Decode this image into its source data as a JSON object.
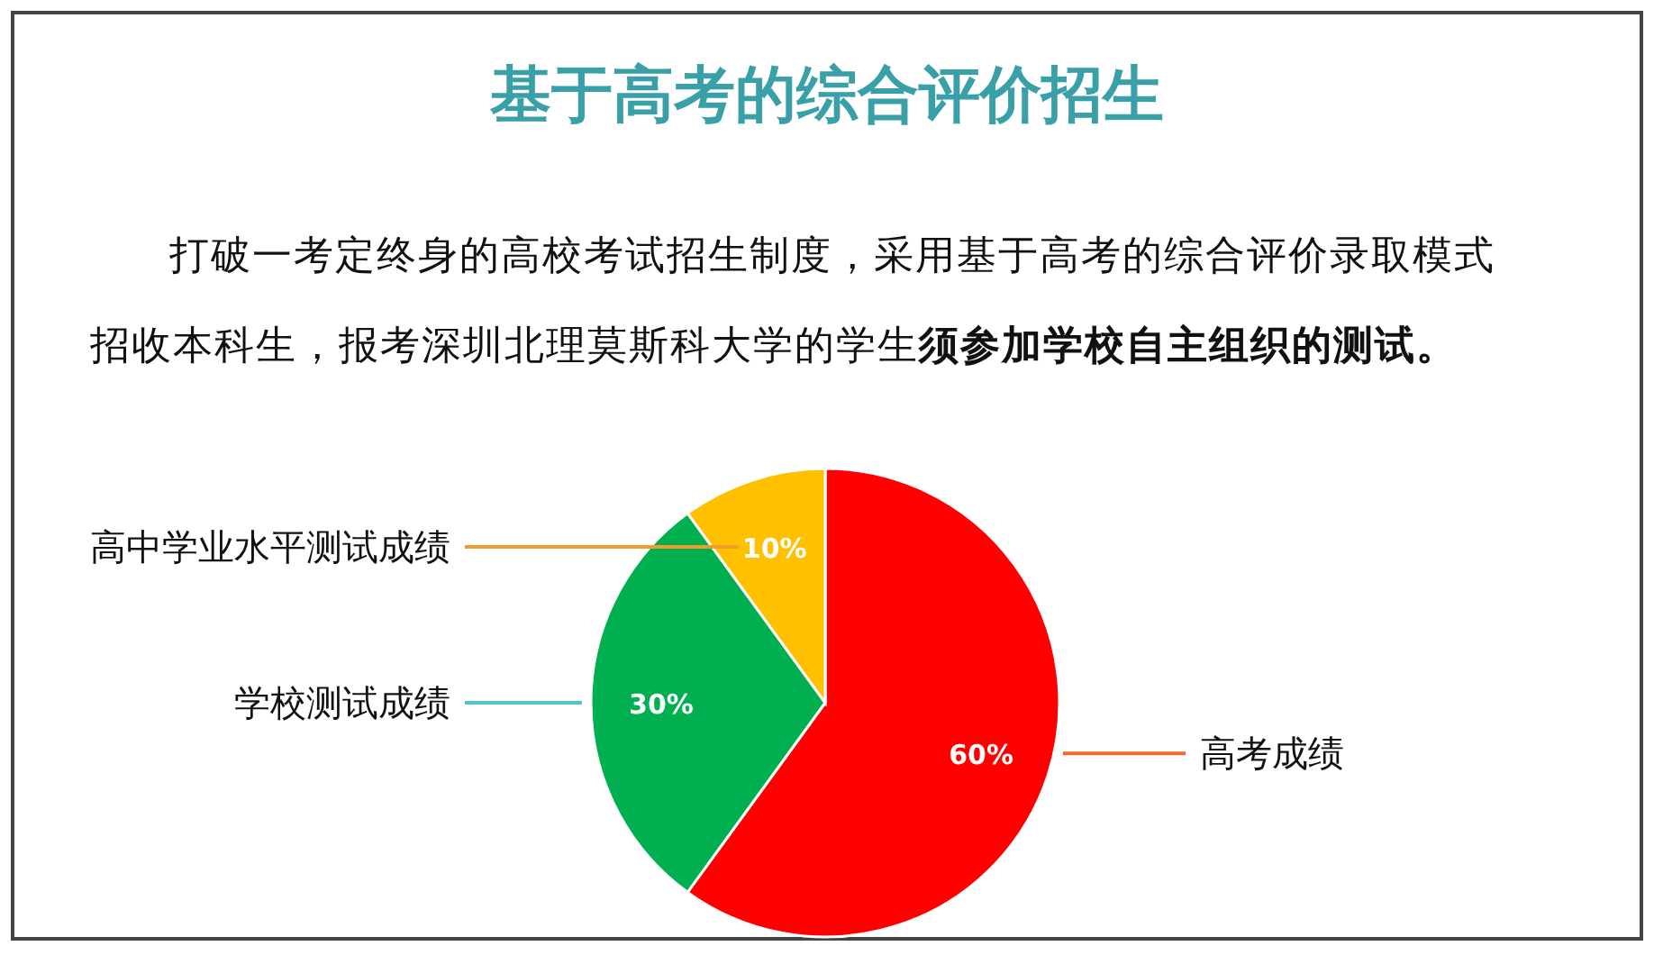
{
  "chart_data": {
    "type": "pie",
    "title": "基于高考的综合评价招生",
    "subtitle": "打破一考定终身的高校考试招生制度，采用基于高考的综合评价录取模式招收本科生，报考深圳北理莫斯科大学的学生",
    "annotations": [
      "须参加学校自主组织的测试。"
    ],
    "categories": [
      "高考成绩",
      "学校测试成绩",
      "高中学业水平测试成绩"
    ],
    "values": [
      60,
      30,
      10
    ],
    "value_labels": [
      "60%",
      "30%",
      "10%"
    ],
    "colors": [
      "#ff0000",
      "#00b050",
      "#ffc000"
    ]
  }
}
